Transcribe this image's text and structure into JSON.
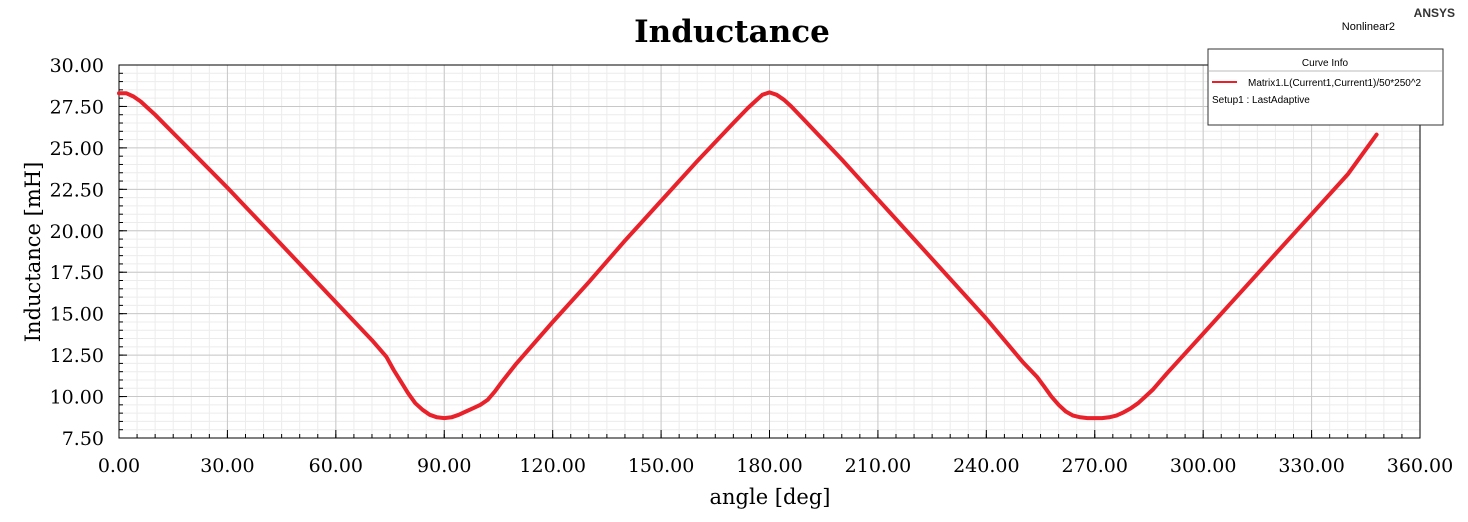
{
  "header": {
    "brand": "ANSYS",
    "design_name": "Nonlinear2"
  },
  "legend": {
    "title": "Curve Info",
    "entries": [
      {
        "label": "Matrix1.L(Current1,Current1)/50*250^2",
        "color": "#e8212a"
      }
    ],
    "setup_label": "Setup1 : LastAdaptive"
  },
  "chart_data": {
    "type": "line",
    "title": "Inductance",
    "xlabel": "angle [deg]",
    "ylabel": "Inductance [mH]",
    "xlim": [
      0,
      360
    ],
    "ylim": [
      7.5,
      30
    ],
    "xticks": [
      "0.00",
      "30.00",
      "60.00",
      "90.00",
      "120.00",
      "150.00",
      "180.00",
      "210.00",
      "240.00",
      "270.00",
      "300.00",
      "330.00",
      "360.00"
    ],
    "yticks": [
      "7.50",
      "10.00",
      "12.50",
      "15.00",
      "17.50",
      "20.00",
      "22.50",
      "25.00",
      "27.50",
      "30.00"
    ],
    "grid": true,
    "legend_position": "top-right",
    "series": [
      {
        "name": "Matrix1.L(Current1,Current1)/50*250^2",
        "color": "#e8212a",
        "x": [
          0,
          2,
          4,
          6,
          8,
          10,
          15,
          20,
          30,
          40,
          50,
          60,
          70,
          74,
          76,
          78,
          80,
          82,
          84,
          86,
          88,
          90,
          92,
          94,
          96,
          98,
          100,
          102,
          104,
          106,
          110,
          120,
          130,
          140,
          150,
          160,
          170,
          174,
          176,
          178,
          180,
          182,
          184,
          186,
          190,
          200,
          210,
          220,
          230,
          240,
          250,
          254,
          256,
          258,
          260,
          262,
          264,
          266,
          268,
          270,
          272,
          274,
          276,
          278,
          280,
          282,
          284,
          286,
          290,
          300,
          310,
          320,
          330,
          340,
          348
        ],
        "y": [
          28.3,
          28.3,
          28.1,
          27.8,
          27.4,
          27.0,
          25.9,
          24.8,
          22.6,
          20.3,
          18.0,
          15.7,
          13.4,
          12.4,
          11.6,
          10.9,
          10.2,
          9.6,
          9.2,
          8.9,
          8.75,
          8.7,
          8.75,
          8.9,
          9.1,
          9.3,
          9.5,
          9.8,
          10.3,
          10.9,
          12.0,
          14.5,
          16.9,
          19.4,
          21.8,
          24.2,
          26.5,
          27.4,
          27.8,
          28.2,
          28.35,
          28.2,
          27.9,
          27.5,
          26.6,
          24.3,
          21.9,
          19.5,
          17.1,
          14.7,
          12.1,
          11.2,
          10.6,
          10.0,
          9.5,
          9.1,
          8.85,
          8.75,
          8.7,
          8.7,
          8.7,
          8.75,
          8.85,
          9.05,
          9.3,
          9.6,
          10.0,
          10.4,
          11.4,
          13.8,
          16.2,
          18.6,
          21.0,
          23.4,
          25.8
        ]
      }
    ]
  }
}
